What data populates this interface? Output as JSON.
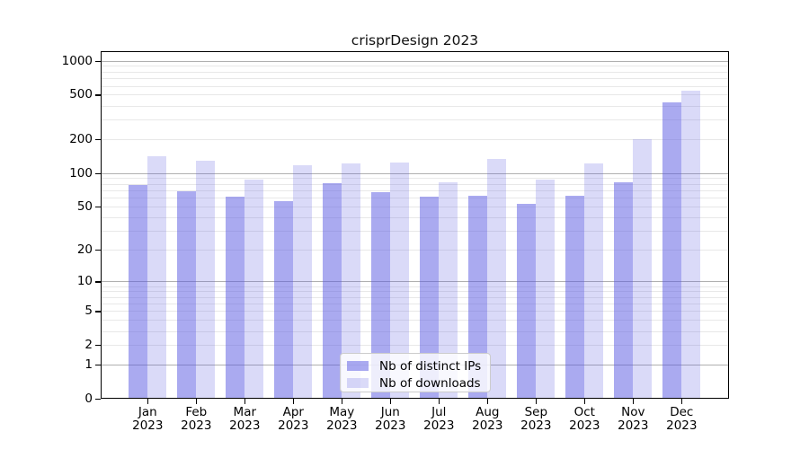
{
  "chart_data": {
    "type": "bar",
    "title": "crisprDesign 2023",
    "y_scale": "log1p",
    "ylim": [
      0,
      1230
    ],
    "y_ticks": [
      1000,
      500,
      200,
      100,
      50,
      20,
      10,
      5,
      2,
      1,
      0
    ],
    "grid": "horizontal major (1,10,100,1000) + minor log subdivisions",
    "legend_position": "lower center",
    "months": [
      "Jan",
      "Feb",
      "Mar",
      "Apr",
      "May",
      "Jun",
      "Jul",
      "Aug",
      "Sep",
      "Oct",
      "Nov",
      "Dec"
    ],
    "year": "2023",
    "series": [
      {
        "id": "distinct-ips",
        "name": "Nb of distinct IPs",
        "color": "rgba(85,85,225,0.5)",
        "values": [
          78,
          69,
          61,
          56,
          81,
          67,
          61,
          62,
          53,
          62,
          83,
          428
        ]
      },
      {
        "id": "downloads",
        "name": "Nb of downloads",
        "color": "rgba(85,85,225,0.22)",
        "values": [
          140,
          128,
          88,
          118,
          121,
          125,
          83,
          134,
          88,
          122,
          200,
          543
        ]
      }
    ],
    "colors": {
      "major_grid": "#b0b0b0",
      "minor_grid": "#e8e8e8",
      "axis": "#000000",
      "text": "#000000"
    }
  }
}
